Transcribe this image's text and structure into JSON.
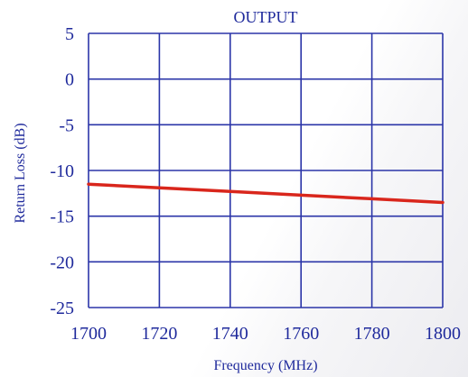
{
  "colors": {
    "grid": "#2b35a8",
    "text": "#1f2a9c",
    "series": "#d9261c"
  },
  "chart_data": {
    "type": "line",
    "title": "OUTPUT",
    "xlabel": "Frequency (MHz)",
    "ylabel": "Return Loss (dB)",
    "xlim": [
      1700,
      1800
    ],
    "ylim": [
      -25,
      5
    ],
    "xticks": [
      1700,
      1720,
      1740,
      1760,
      1780,
      1800
    ],
    "yticks": [
      5,
      0,
      -5,
      -10,
      -15,
      -20,
      -25
    ],
    "grid": true,
    "series": [
      {
        "x": [
          1700,
          1720,
          1740,
          1760,
          1780,
          1800
        ],
        "values": [
          -11.5,
          -11.9,
          -12.3,
          -12.7,
          -13.1,
          -13.5
        ]
      }
    ]
  }
}
